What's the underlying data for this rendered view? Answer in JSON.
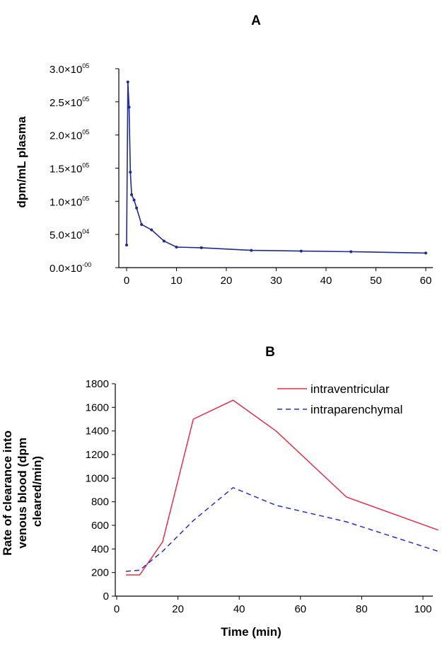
{
  "colors": {
    "panel_a_series": "#1f2a8a",
    "intraventricular": "#e0304a",
    "intraparenchymal": "#2b2fbf",
    "axis": "#000000"
  },
  "chart_data": [
    {
      "panel_label": "A",
      "type": "line",
      "title": "A",
      "xlabel": "",
      "ylabel": "dpm/mL plasma",
      "xlim": [
        -1,
        62
      ],
      "ylim": [
        0,
        30000
      ],
      "x_ticks": [
        0,
        10,
        20,
        30,
        40,
        50,
        60
      ],
      "y_ticks": [
        {
          "value": 0,
          "mantissa": "0.0×10",
          "exp": "-00"
        },
        {
          "value": 5000,
          "mantissa": "5.0×10",
          "exp": "04"
        },
        {
          "value": 10000,
          "mantissa": "1.0×10",
          "exp": "05"
        },
        {
          "value": 15000,
          "mantissa": "1.5×10",
          "exp": "05"
        },
        {
          "value": 20000,
          "mantissa": "2.0×10",
          "exp": "05"
        },
        {
          "value": 25000,
          "mantissa": "2.5×10",
          "exp": "05"
        },
        {
          "value": 30000,
          "mantissa": "3.0×10",
          "exp": "05"
        }
      ],
      "grid": false,
      "series": [
        {
          "x": [
            0,
            0.25,
            0.5,
            0.75,
            1,
            1.5,
            2,
            3,
            5,
            7.5,
            10,
            15,
            25,
            35,
            45,
            60
          ],
          "y": [
            3400,
            28000,
            24200,
            14400,
            11000,
            10200,
            9000,
            6500,
            5700,
            4000,
            3100,
            3000,
            2600,
            2500,
            2400,
            2200
          ]
        }
      ]
    },
    {
      "panel_label": "B",
      "type": "line",
      "title": "B",
      "xlabel": "Time (min)",
      "ylabel": "Rate of clearance into venous blood (dpm cleared/min)",
      "ylabel_lines": [
        "Rate of clearance into",
        "venous blood (dpm",
        "cleared/min)"
      ],
      "xlim": [
        0,
        107
      ],
      "ylim": [
        0,
        1800
      ],
      "x_ticks": [
        0,
        20,
        40,
        60,
        80,
        100
      ],
      "y_ticks": [
        0,
        200,
        400,
        600,
        800,
        1000,
        1200,
        1400,
        1600,
        1800
      ],
      "grid": false,
      "legend": "top-right",
      "series": [
        {
          "name": "intraventricular",
          "style": "solid",
          "x": [
            3,
            7.5,
            15,
            25,
            38,
            52,
            75,
            105
          ],
          "y": [
            180,
            180,
            460,
            1500,
            1660,
            1400,
            840,
            560
          ]
        },
        {
          "name": "intraparenchymal",
          "style": "dashed",
          "x": [
            3,
            7.5,
            15,
            25,
            38,
            52,
            75,
            105
          ],
          "y": [
            210,
            220,
            380,
            640,
            920,
            770,
            630,
            380
          ]
        }
      ]
    }
  ]
}
